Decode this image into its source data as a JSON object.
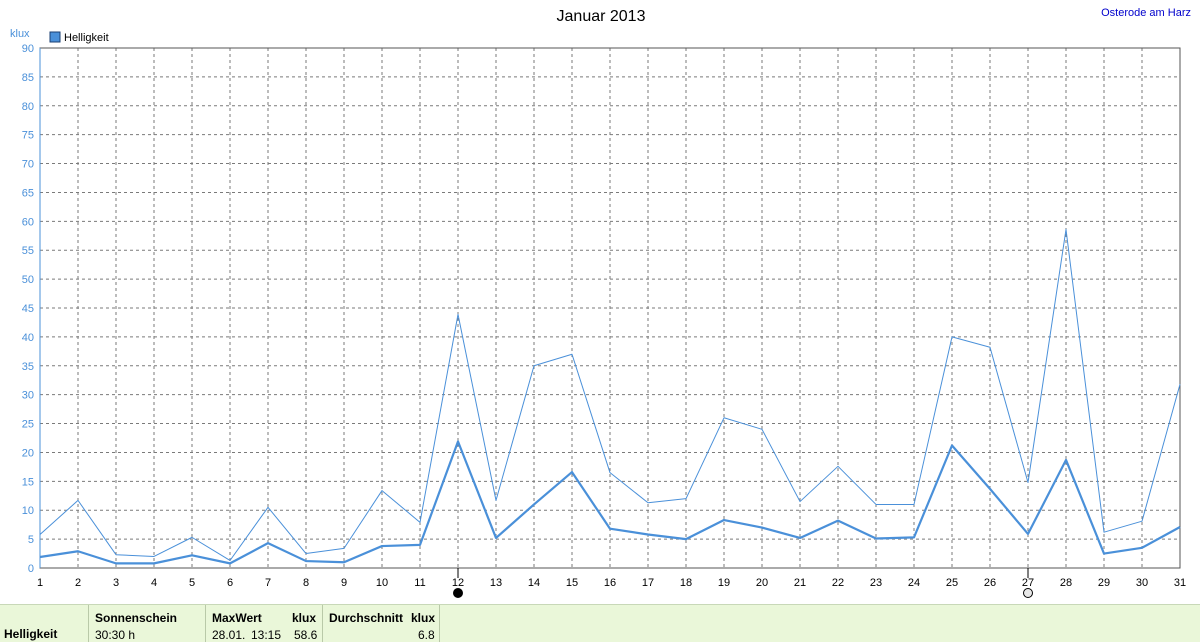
{
  "header": {
    "title": "Januar 2013",
    "location": "Osterode am Harz"
  },
  "chart_data": {
    "type": "line",
    "title": "Januar 2013",
    "ylabel": "klux",
    "ylim": [
      0,
      90
    ],
    "yticks": [
      0,
      5,
      10,
      15,
      20,
      25,
      30,
      35,
      40,
      45,
      50,
      55,
      60,
      65,
      70,
      75,
      80,
      85,
      90
    ],
    "categories": [
      "1",
      "2",
      "3",
      "4",
      "5",
      "6",
      "7",
      "8",
      "9",
      "10",
      "11",
      "12",
      "13",
      "14",
      "15",
      "16",
      "17",
      "18",
      "19",
      "20",
      "21",
      "22",
      "23",
      "24",
      "25",
      "26",
      "27",
      "28",
      "29",
      "30",
      "31"
    ],
    "legend": "top-left",
    "grid": true,
    "legend_label": "Helligkeit",
    "series": [
      {
        "name": "Helligkeit",
        "color": "#4a90d9",
        "stroke": "thick",
        "values": [
          1.9,
          2.9,
          0.8,
          0.8,
          2.2,
          0.8,
          4.3,
          1.2,
          1.0,
          3.8,
          4.0,
          21.9,
          5.2,
          11.0,
          16.6,
          6.8,
          5.8,
          5.0,
          8.3,
          7.0,
          5.2,
          8.2,
          5.1,
          5.3,
          21.2,
          13.7,
          5.9,
          18.7,
          2.5,
          3.5,
          7.1
        ]
      },
      {
        "name": "",
        "color": "#4a90d9",
        "stroke": "thin",
        "values": [
          5.8,
          11.7,
          2.3,
          2.0,
          5.3,
          1.3,
          10.5,
          2.5,
          3.4,
          13.4,
          7.9,
          43.9,
          11.7,
          35.0,
          37.0,
          16.5,
          11.3,
          12.0,
          26.0,
          24.0,
          11.5,
          17.6,
          11.0,
          11.0,
          40.0,
          38.2,
          14.8,
          58.6,
          6.2,
          8.1,
          31.8
        ]
      }
    ],
    "markers": [
      {
        "day": 12,
        "icon": "new-moon-icon"
      },
      {
        "day": 27,
        "icon": "full-moon-icon"
      }
    ]
  },
  "info": {
    "row_label": "Helligkeit",
    "sunshine_label": "Sonnenschein",
    "sunshine_value": "30:30 h",
    "max_label": "MaxWert",
    "max_unit": "klux",
    "max_date": "28.01.",
    "max_time": "13:15",
    "max_value": "58.6",
    "avg_label": "Durchschnitt",
    "avg_unit": "klux",
    "avg_value": "6.8"
  }
}
